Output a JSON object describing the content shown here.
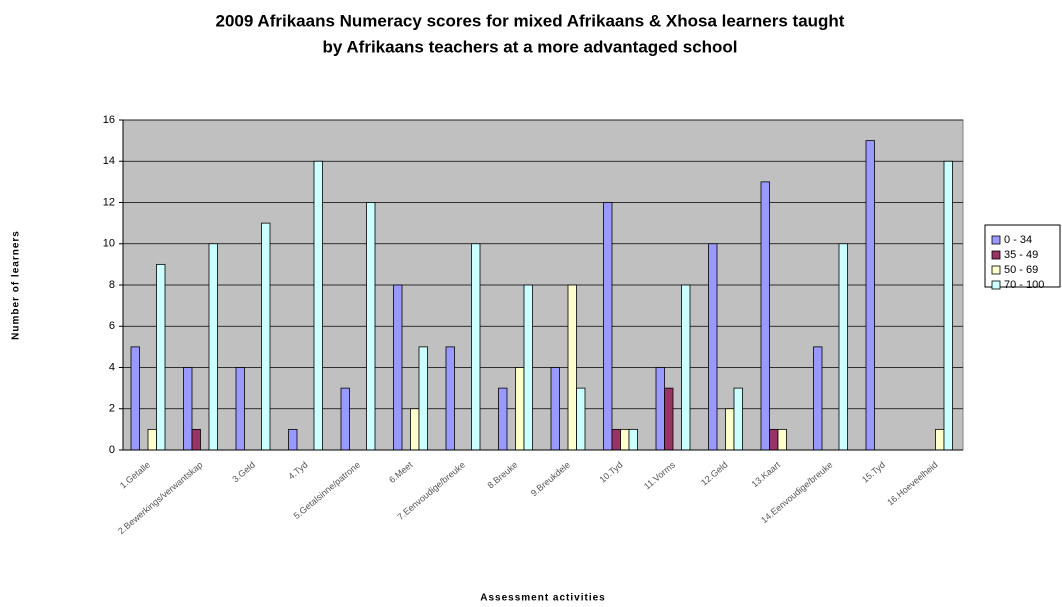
{
  "chart_data": {
    "type": "bar",
    "title": [
      "2009 Afrikaans Numeracy scores for mixed Afrikaans & Xhosa learners taught",
      "by Afrikaans teachers at a more advantaged school"
    ],
    "y_label": "Number of learners",
    "x_label": "Assessment activities",
    "categories": [
      "1.Getalle",
      "2.Bewerkings/verwantskap",
      "3.Geld",
      "4.Tyd",
      "5.Getalsinne/patrone",
      "6.Meet",
      "7.Eenvoudige/breuke",
      "8.Breuke",
      "9.Breukdele",
      "10.Tyd",
      "11.Vorms",
      "12.Geld",
      "13.Kaart",
      "14.Eenvoudige/breuke",
      "15.Tyd",
      "16.Hoeveelheid"
    ],
    "series": [
      {
        "name": "0 - 34",
        "color": "#9999ff",
        "values": [
          5,
          4,
          4,
          1,
          3,
          8,
          5,
          3,
          4,
          12,
          4,
          10,
          13,
          5,
          15,
          0
        ]
      },
      {
        "name": "35 - 49",
        "color": "#993366",
        "values": [
          0,
          1,
          0,
          0,
          0,
          0,
          0,
          0,
          0,
          1,
          3,
          0,
          1,
          0,
          0,
          0
        ]
      },
      {
        "name": "50 - 69",
        "color": "#ffffcc",
        "values": [
          1,
          0,
          0,
          0,
          0,
          2,
          0,
          4,
          8,
          1,
          0,
          2,
          1,
          0,
          0,
          1
        ]
      },
      {
        "name": "70 - 100",
        "color": "#ccffff",
        "values": [
          9,
          10,
          11,
          14,
          12,
          5,
          10,
          8,
          3,
          1,
          8,
          3,
          0,
          10,
          0,
          14
        ]
      }
    ],
    "ylim": [
      0,
      16
    ],
    "yticks": [
      0,
      2,
      4,
      6,
      8,
      10,
      12,
      14,
      16
    ],
    "grid": true,
    "legend": "right"
  }
}
